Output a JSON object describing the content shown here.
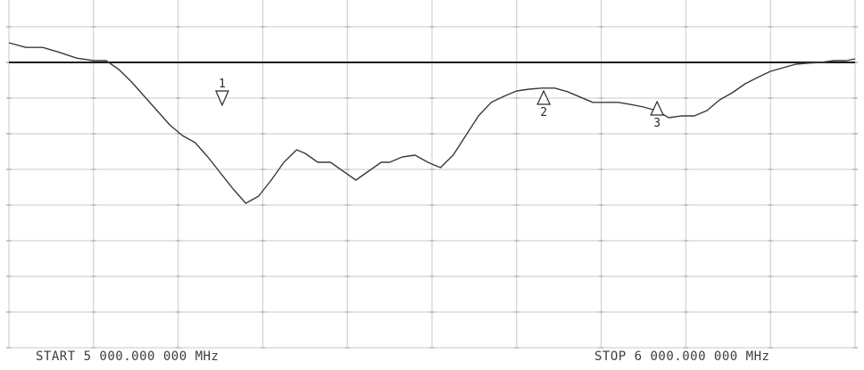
{
  "start_label": "START 5 000.000 000 MHz",
  "stop_label": "STOP 6 000.000 000 MHz",
  "colors": {
    "background": "#ffffff",
    "trace": "#3a3a3a",
    "reference_line": "#1a1a1a",
    "grid": "#c9c9c9"
  },
  "chart_data": {
    "type": "line",
    "title": "",
    "xlabel": "",
    "ylabel": "",
    "x_unit": "MHz",
    "xlim": [
      5000,
      6000
    ],
    "ylim": [
      -8,
      2
    ],
    "y_unit": "divisions from reference",
    "grid": true,
    "grid_divisions": {
      "x": 10,
      "y": 10
    },
    "reference_level": 0,
    "series": [
      {
        "x": [
          5000,
          5020,
          5040,
          5060,
          5080,
          5100,
          5115,
          5130,
          5145,
          5160,
          5175,
          5190,
          5205,
          5220,
          5235,
          5250,
          5265,
          5280,
          5295,
          5310,
          5325,
          5340,
          5350,
          5365,
          5380,
          5395,
          5410,
          5425,
          5440,
          5450,
          5465,
          5480,
          5495,
          5510,
          5525,
          5540,
          5555,
          5570,
          5585,
          5600,
          5615,
          5630,
          5645,
          5660,
          5675,
          5690,
          5705,
          5720,
          5735,
          5750,
          5765,
          5780,
          5795,
          5810,
          5825,
          5840,
          5855,
          5870,
          5885,
          5900,
          5915,
          5930,
          5945,
          5960,
          5975,
          5990,
          6000
        ],
        "y": [
          0.55,
          0.42,
          0.42,
          0.28,
          0.12,
          0.05,
          0.05,
          -0.2,
          -0.55,
          -0.95,
          -1.35,
          -1.75,
          -2.05,
          -2.25,
          -2.65,
          -3.1,
          -3.55,
          -3.95,
          -3.75,
          -3.3,
          -2.8,
          -2.45,
          -2.55,
          -2.8,
          -2.8,
          -3.05,
          -3.3,
          -3.05,
          -2.8,
          -2.8,
          -2.65,
          -2.6,
          -2.8,
          -2.95,
          -2.6,
          -2.05,
          -1.5,
          -1.12,
          -0.95,
          -0.8,
          -0.75,
          -0.72,
          -0.72,
          -0.82,
          -0.97,
          -1.12,
          -1.12,
          -1.12,
          -1.18,
          -1.25,
          -1.35,
          -1.55,
          -1.5,
          -1.5,
          -1.35,
          -1.05,
          -0.85,
          -0.6,
          -0.42,
          -0.25,
          -0.15,
          -0.05,
          -0.02,
          0.0,
          0.05,
          0.05,
          0.1
        ]
      }
    ],
    "markers": [
      {
        "label": "1",
        "x": 5252,
        "y": -1.2
      },
      {
        "label": "2",
        "x": 5632,
        "y": -0.8
      },
      {
        "label": "3",
        "x": 5766,
        "y": -1.1
      }
    ]
  }
}
